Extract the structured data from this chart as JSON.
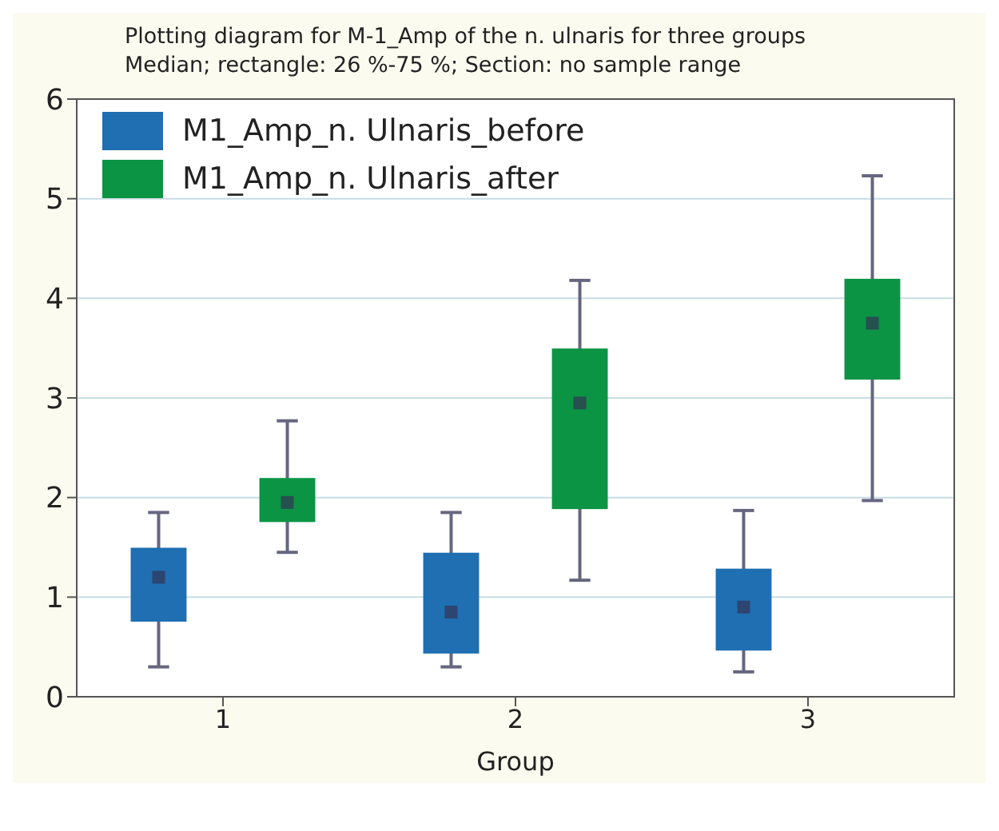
{
  "chart_data": {
    "type": "box",
    "title": "Plotting diagram for M-1_Amp of the n. ulnaris for three groups",
    "subtitle": "Median; rectangle: 26 %-75 %; Section: no sample range",
    "xlabel": "Group",
    "categories": [
      "1",
      "2",
      "3"
    ],
    "ylim": [
      0,
      6
    ],
    "yticks": [
      0,
      1,
      2,
      3,
      4,
      5,
      6
    ],
    "grid": "y",
    "legend": "top left",
    "series": [
      {
        "name": "M1_Amp_n. Ulnaris_before",
        "color": "#1f6fb2",
        "boxes": [
          {
            "low": 0.3,
            "q1": 0.77,
            "median": 1.2,
            "q3": 1.48,
            "high": 1.85
          },
          {
            "low": 0.3,
            "q1": 0.45,
            "median": 0.85,
            "q3": 1.43,
            "high": 1.85
          },
          {
            "low": 0.25,
            "q1": 0.48,
            "median": 0.9,
            "q3": 1.27,
            "high": 1.87
          }
        ]
      },
      {
        "name": "M1_Amp_n. Ulnaris_after",
        "color": "#0b9444",
        "boxes": [
          {
            "low": 1.45,
            "q1": 1.77,
            "median": 1.95,
            "q3": 2.18,
            "high": 2.77
          },
          {
            "low": 1.17,
            "q1": 1.9,
            "median": 2.95,
            "q3": 3.48,
            "high": 4.18
          },
          {
            "low": 1.97,
            "q1": 3.2,
            "median": 3.75,
            "q3": 4.18,
            "high": 5.23
          }
        ]
      }
    ]
  }
}
